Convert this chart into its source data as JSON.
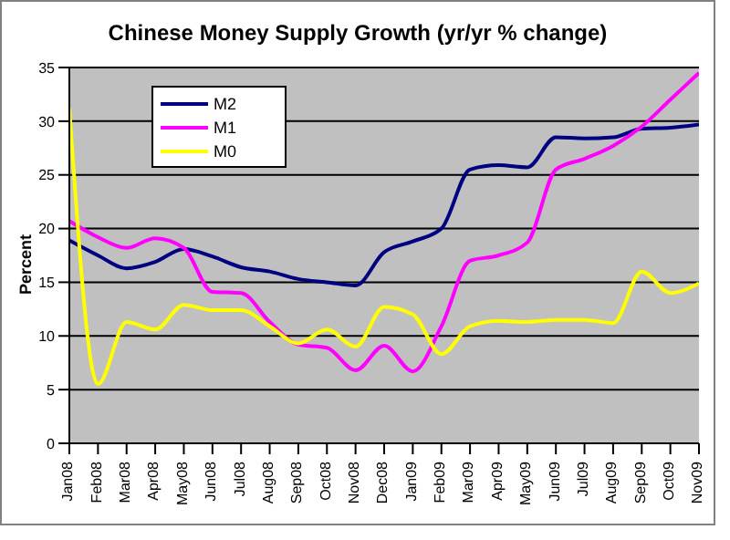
{
  "chart_data": {
    "type": "line",
    "title": "Chinese Money Supply Growth (yr/yr % change)",
    "ylabel": "Percent",
    "categories": [
      "Jan08",
      "Feb08",
      "Mar08",
      "Apr08",
      "May08",
      "Jun08",
      "Jul08",
      "Aug08",
      "Sep08",
      "Oct08",
      "Nov08",
      "Dec08",
      "Jan09",
      "Feb09",
      "Mar09",
      "Apr09",
      "May09",
      "Jun09",
      "Jul09",
      "Aug09",
      "Sep09",
      "Oct09",
      "Nov09"
    ],
    "series": [
      {
        "name": "M2",
        "color": "#000080",
        "values": [
          18.9,
          17.5,
          16.3,
          16.9,
          18.1,
          17.4,
          16.4,
          16.0,
          15.3,
          15.0,
          14.7,
          17.8,
          18.8,
          20.0,
          25.5,
          25.9,
          25.7,
          28.5,
          28.4,
          28.5,
          29.3,
          29.4,
          29.7
        ]
      },
      {
        "name": "M1",
        "color": "#ff00ff",
        "values": [
          20.7,
          19.2,
          18.2,
          19.1,
          18.2,
          14.1,
          14.0,
          11.3,
          9.2,
          8.9,
          6.8,
          9.1,
          6.7,
          10.9,
          17.0,
          17.5,
          18.7,
          25.5,
          26.5,
          27.7,
          29.5,
          32.0,
          34.5
        ]
      },
      {
        "name": "M0",
        "color": "#ffff00",
        "values": [
          31.2,
          5.5,
          11.3,
          10.6,
          12.9,
          12.4,
          12.4,
          10.9,
          9.3,
          10.6,
          9.0,
          12.7,
          12.0,
          8.3,
          10.9,
          11.4,
          11.3,
          11.5,
          11.5,
          11.2,
          16.0,
          14.0,
          14.9
        ]
      }
    ],
    "ylim": [
      0,
      35
    ],
    "yticks": [
      0,
      5,
      10,
      15,
      20,
      25,
      30,
      35
    ],
    "grid": "y",
    "legend": "top left",
    "marker": "none",
    "line_style": "solid"
  }
}
